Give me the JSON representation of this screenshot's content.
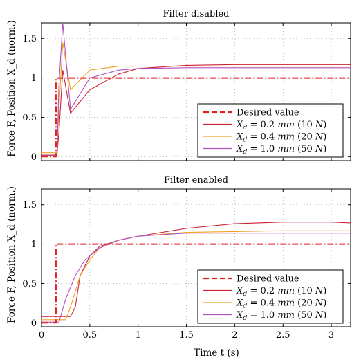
{
  "figure": {
    "ylabel": "Force F, Position X_d (norm.)",
    "xlabel": "Time t (s)"
  },
  "colors": {
    "desired": "#dd2222",
    "red": "#cc2233",
    "orange": "#f0a020",
    "purple": "#b050c0"
  },
  "chart_data": [
    {
      "type": "line",
      "title": "Filter disabled",
      "xlim": [
        0,
        3.2
      ],
      "ylim": [
        -0.05,
        1.7
      ],
      "xticks": [
        0,
        0.5,
        1,
        1.5,
        2,
        2.5,
        3
      ],
      "yticks": [
        0,
        0.5,
        1,
        1.5
      ],
      "xtick_labels_shown": false,
      "grid": true,
      "legend_position": "lower-right",
      "series": [
        {
          "name": "Desired value",
          "color": "desired",
          "dash": "dash-dot",
          "x": [
            0,
            0.15,
            0.15,
            3.2
          ],
          "y": [
            0,
            0,
            1,
            1
          ]
        },
        {
          "name": "X_d = 0.2 mm (10 N)",
          "color": "red",
          "dash": "solid",
          "x": [
            0,
            0.16,
            0.18,
            0.22,
            0.3,
            0.5,
            0.8,
            1.0,
            1.5,
            2.0,
            2.5,
            3.0,
            3.2
          ],
          "y": [
            0.02,
            0.02,
            0.3,
            1.1,
            0.55,
            0.85,
            1.05,
            1.12,
            1.16,
            1.17,
            1.17,
            1.17,
            1.17
          ]
        },
        {
          "name": "X_d = 0.4 mm (20 N)",
          "color": "orange",
          "dash": "solid",
          "x": [
            0,
            0.16,
            0.18,
            0.22,
            0.3,
            0.5,
            0.8,
            1.0,
            1.5,
            2.0,
            2.5,
            3.0,
            3.2
          ],
          "y": [
            0.05,
            0.05,
            0.6,
            1.45,
            0.85,
            1.1,
            1.15,
            1.15,
            1.15,
            1.15,
            1.15,
            1.15,
            1.15
          ]
        },
        {
          "name": "X_d = 1.0 mm (50 N)",
          "color": "purple",
          "dash": "solid",
          "x": [
            0,
            0.16,
            0.18,
            0.22,
            0.3,
            0.5,
            0.8,
            1.0,
            1.5,
            2.0,
            2.5,
            3.0,
            3.2
          ],
          "y": [
            0.01,
            0.01,
            0.9,
            1.7,
            0.6,
            1.0,
            1.1,
            1.12,
            1.13,
            1.13,
            1.13,
            1.13,
            1.13
          ]
        }
      ]
    },
    {
      "type": "line",
      "title": "Filter enabled",
      "xlim": [
        0,
        3.2
      ],
      "ylim": [
        -0.05,
        1.7
      ],
      "xticks": [
        0,
        0.5,
        1,
        1.5,
        2,
        2.5,
        3
      ],
      "xtick_labels": [
        "0",
        "0.5",
        "1",
        "1.5",
        "2",
        "2.5",
        "3"
      ],
      "yticks": [
        0,
        0.5,
        1,
        1.5
      ],
      "grid": true,
      "legend_position": "lower-right",
      "series": [
        {
          "name": "Desired value",
          "color": "desired",
          "dash": "dash-dot",
          "x": [
            0,
            0.15,
            0.15,
            3.2
          ],
          "y": [
            0,
            0,
            1,
            1
          ]
        },
        {
          "name": "X_d = 0.2 mm (10 N)",
          "color": "red",
          "dash": "solid",
          "x": [
            0,
            0.3,
            0.35,
            0.4,
            0.5,
            0.6,
            0.8,
            1.0,
            1.5,
            2.0,
            2.5,
            3.0,
            3.2
          ],
          "y": [
            0.08,
            0.08,
            0.2,
            0.6,
            0.85,
            0.97,
            1.05,
            1.1,
            1.2,
            1.26,
            1.28,
            1.28,
            1.27
          ]
        },
        {
          "name": "X_d = 0.4 mm (20 N)",
          "color": "orange",
          "dash": "solid",
          "x": [
            0,
            0.25,
            0.3,
            0.4,
            0.5,
            0.6,
            0.8,
            1.0,
            1.5,
            2.0,
            2.5,
            3.0,
            3.2
          ],
          "y": [
            0.04,
            0.04,
            0.2,
            0.6,
            0.8,
            0.95,
            1.05,
            1.1,
            1.15,
            1.16,
            1.17,
            1.17,
            1.17
          ]
        },
        {
          "name": "X_d = 1.0 mm (50 N)",
          "color": "purple",
          "dash": "solid",
          "x": [
            0,
            0.18,
            0.25,
            0.35,
            0.45,
            0.6,
            0.8,
            1.0,
            1.5,
            2.0,
            2.5,
            3.0,
            3.2
          ],
          "y": [
            0.01,
            0.01,
            0.3,
            0.6,
            0.8,
            0.95,
            1.05,
            1.1,
            1.14,
            1.14,
            1.14,
            1.14,
            1.14
          ]
        }
      ]
    }
  ]
}
